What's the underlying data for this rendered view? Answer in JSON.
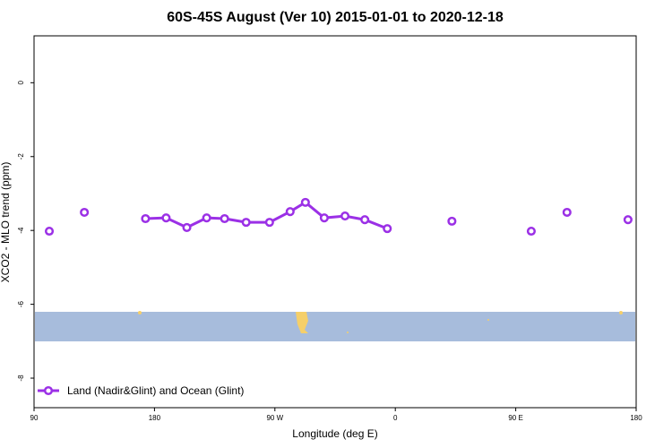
{
  "chart_data": {
    "type": "line",
    "title": "60S-45S August (Ver 10)   2015-01-01 to 2020-12-18",
    "x_label": "Longitude (deg E)",
    "y_label": "XCO2 - MLO trend (ppm)",
    "x": [
      101.4,
      null,
      127.6,
      null,
      173.3,
      188.7,
      204.2,
      219,
      232.4,
      248.5,
      266,
      281.4,
      292.8,
      306.9,
      322.4,
      337.2,
      354,
      null,
      402.3,
      null,
      461.6,
      null,
      488.3,
      null,
      533.9
    ],
    "series": [
      {
        "name": "Land (Nadir&Glint) and Ocean (Glint)",
        "color": "#9b30e6",
        "values": [
          -4.02,
          null,
          -3.51,
          null,
          -3.68,
          -3.66,
          -3.92,
          -3.66,
          -3.68,
          -3.78,
          -3.78,
          -3.49,
          -3.24,
          -3.66,
          -3.61,
          -3.71,
          -3.95,
          null,
          -3.75,
          null,
          -4.02,
          null,
          -3.51,
          null,
          -3.71
        ]
      }
    ],
    "xlim": [
      90,
      540
    ],
    "xticks": [
      90,
      180,
      {
        "value": 270,
        "label": "90 W"
      },
      {
        "value": 360,
        "label": "0"
      },
      {
        "value": 450,
        "label": "90 E"
      },
      {
        "value": 540,
        "label": "180"
      }
    ],
    "ylim": [
      -8.8,
      1.27
    ],
    "yticks": [
      0,
      -2,
      -4,
      -6,
      -8
    ],
    "legend": "bottom-left"
  }
}
